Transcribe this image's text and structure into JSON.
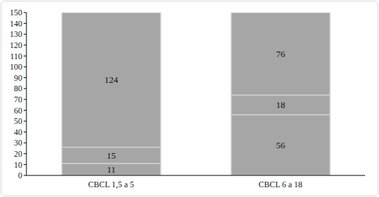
{
  "chart_data": {
    "type": "bar",
    "stacked": true,
    "data_labels": true,
    "grid": false,
    "categories": [
      "CBCL 1,5 a 5",
      "CBCL 6 a 18"
    ],
    "series": [
      {
        "color": "#a6a6a6",
        "values": [
          11,
          56
        ]
      },
      {
        "color": "#a6a6a6",
        "values": [
          15,
          18
        ]
      },
      {
        "color": "#a6a6a6",
        "values": [
          124,
          76
        ]
      }
    ],
    "ylim": [
      0,
      150
    ],
    "yticks": [
      0,
      10,
      20,
      30,
      40,
      50,
      60,
      70,
      80,
      90,
      100,
      110,
      120,
      130,
      140,
      150
    ]
  }
}
